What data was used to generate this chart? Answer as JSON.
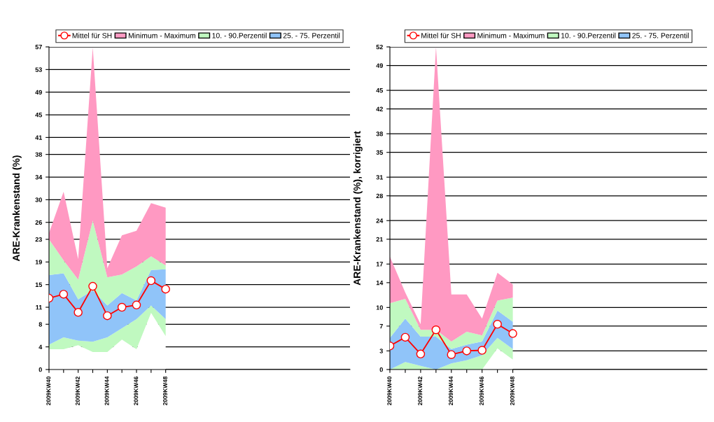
{
  "chart_data": [
    {
      "type": "area",
      "stacked": true,
      "ylabel": "ARE-Krankenstand (%)",
      "categories": [
        "2009KW40",
        null,
        "2009KW42",
        null,
        "2009KW44",
        null,
        "2009KW46",
        null,
        "2009KW48"
      ],
      "ylim": [
        0,
        57
      ],
      "yticks": [
        0,
        4,
        8,
        11,
        15,
        19,
        23,
        26,
        30,
        34,
        38,
        41,
        45,
        49,
        53,
        57
      ],
      "grid": "y",
      "legend": "top",
      "series": [
        {
          "name": "Mittel für SH",
          "type": "line",
          "color": "#ff0000",
          "marker": "circle",
          "values": [
            12.6,
            13.3,
            10.1,
            14.7,
            9.5,
            11.0,
            11.4,
            15.7,
            14.2
          ]
        },
        {
          "color": "#ffffff",
          "values": [
            3.6,
            3.6,
            4.3,
            3.1,
            3.1,
            5.3,
            3.6,
            10.0,
            5.9
          ]
        },
        {
          "color": "#c0f9c0",
          "values": [
            0.8,
            2.1,
            0.8,
            1.8,
            2.6,
            2.0,
            5.3,
            1.3,
            3.0
          ]
        },
        {
          "name": "25. - 75. Perzentil",
          "color": "#90c4f9",
          "values": [
            12.3,
            11.3,
            7.3,
            9.1,
            5.6,
            6.2,
            3.3,
            6.3,
            8.8
          ]
        },
        {
          "name": "10. - 90.Perzentil",
          "color": "#c0f9c0",
          "values": [
            6.3,
            2.3,
            3.5,
            12.3,
            5.0,
            3.3,
            6.0,
            2.4,
            0.7
          ]
        },
        {
          "name": "Minimum - Maximum",
          "color": "#ff99c2",
          "values": [
            1.1,
            12.1,
            3.6,
            30.6,
            1.6,
            6.9,
            6.3,
            9.4,
            10.2
          ]
        }
      ]
    },
    {
      "type": "area",
      "stacked": true,
      "ylabel": "ARE-Krankenstand (%), korrigiert",
      "categories": [
        "2009KW40",
        null,
        "2009KW42",
        null,
        "2009KW44",
        null,
        "2009KW46",
        null,
        "2009KW48"
      ],
      "ylim": [
        0,
        52
      ],
      "yticks": [
        0,
        3,
        7,
        10,
        14,
        17,
        21,
        24,
        28,
        31,
        35,
        38,
        42,
        45,
        49,
        52
      ],
      "grid": "y",
      "legend": "top",
      "series": [
        {
          "name": "Mittel für SH",
          "type": "line",
          "color": "#ff0000",
          "marker": "circle",
          "values": [
            3.8,
            5.2,
            2.5,
            6.4,
            2.4,
            3.0,
            3.1,
            7.3,
            5.8
          ]
        },
        {
          "color": "#ffffff",
          "values": [
            0,
            0,
            0,
            0,
            0,
            0,
            0,
            3.4,
            1.6
          ]
        },
        {
          "color": "#c0f9c0",
          "values": [
            0,
            1.2,
            0.6,
            0,
            1.0,
            1.5,
            2.3,
            1.7,
            1.7
          ]
        },
        {
          "name": "25. - 75. Perzentil",
          "color": "#90c4f9",
          "values": [
            5.1,
            7.0,
            4.7,
            5.3,
            2.3,
            2.5,
            2.2,
            4.4,
            4.4
          ]
        },
        {
          "name": "10. - 90.Perzentil",
          "color": "#c0f9c0",
          "values": [
            5.6,
            3.2,
            1.1,
            1.1,
            1.2,
            2.1,
            1.0,
            1.6,
            3.9
          ]
        },
        {
          "name": "Minimum - Maximum",
          "color": "#ff99c2",
          "values": [
            7.5,
            1.0,
            0.9,
            45.6,
            7.6,
            6.0,
            2.7,
            4.5,
            2.1
          ]
        }
      ]
    }
  ]
}
